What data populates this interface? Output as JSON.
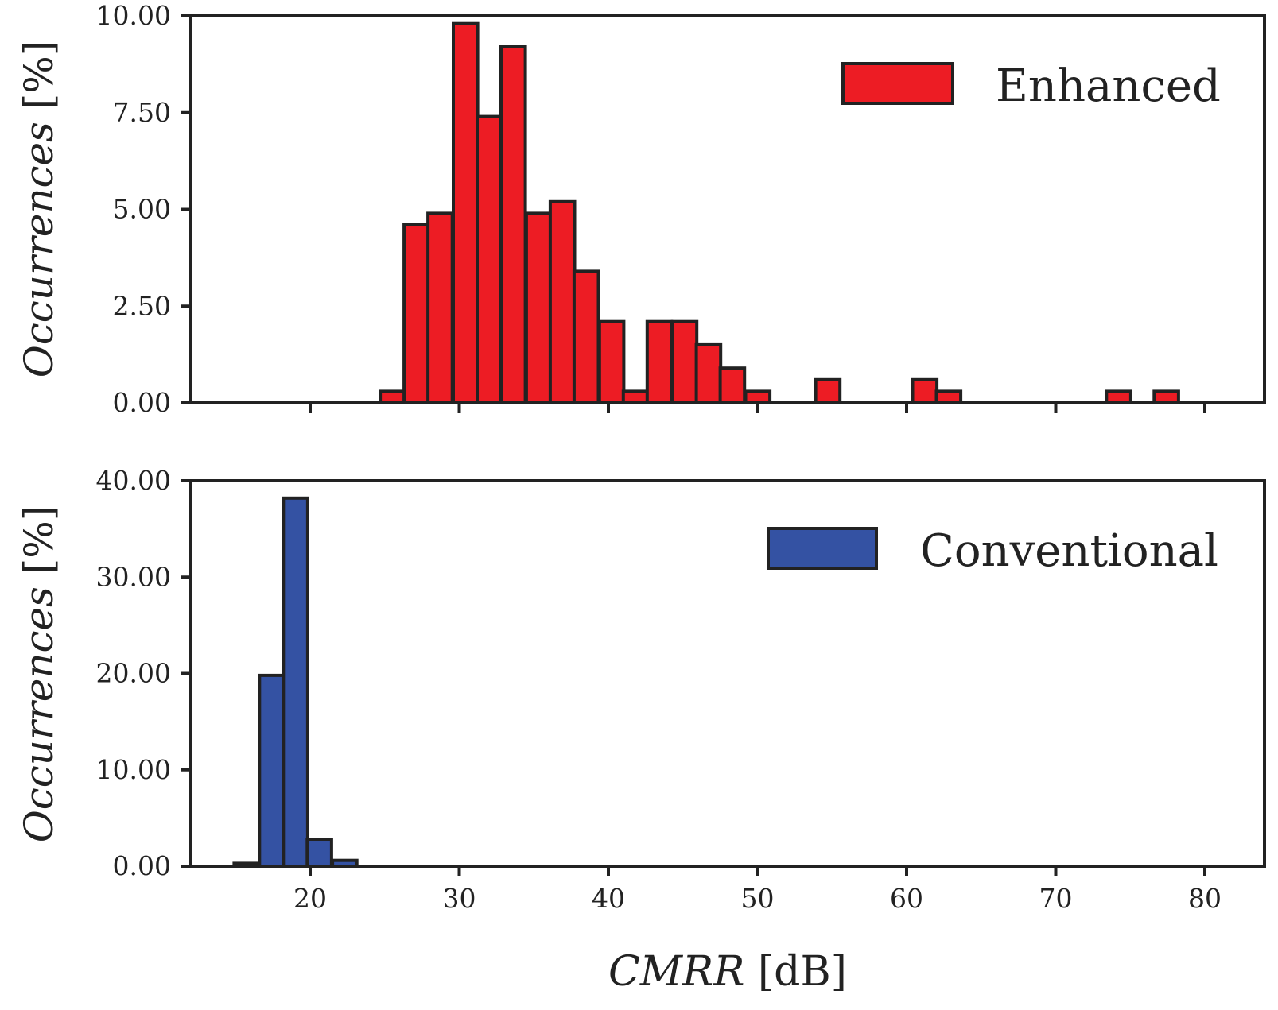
{
  "chart_data": [
    {
      "type": "bar",
      "variant": "histogram",
      "panel": "top",
      "title": "",
      "ylabel": "Occurrences",
      "ylabel_unit": "[%]",
      "xlim": [
        12,
        84
      ],
      "ylim": [
        0,
        10
      ],
      "yticks": [
        0,
        2.5,
        5,
        7.5,
        10
      ],
      "ytick_labels": [
        "0.00",
        "2.50",
        "5.00",
        "7.50",
        "10.00"
      ],
      "xticks": [
        20,
        30,
        40,
        50,
        60,
        70,
        80
      ],
      "show_xtick_labels": false,
      "bin_width": 1.63,
      "grid": false,
      "legend_position": "top-right",
      "color": "#ED1C24",
      "series": [
        {
          "name": "Enhanced",
          "bins_left": [
            24.7,
            26.3,
            27.9,
            29.6,
            31.2,
            32.8,
            34.5,
            36.1,
            37.7,
            39.4,
            41.0,
            42.6,
            44.3,
            45.9,
            47.5,
            49.2,
            53.9,
            60.4,
            62.0,
            73.4,
            76.6
          ],
          "values": [
            0.3,
            4.6,
            4.9,
            9.8,
            7.4,
            9.2,
            4.9,
            5.2,
            3.4,
            2.1,
            0.3,
            2.1,
            2.1,
            1.5,
            0.9,
            0.3,
            0.6,
            0.6,
            0.3,
            0.3,
            0.3
          ]
        }
      ]
    },
    {
      "type": "bar",
      "variant": "histogram",
      "panel": "bottom",
      "title": "",
      "xlabel": "CMRR",
      "xlabel_unit": "[dB]",
      "ylabel": "Occurrences",
      "ylabel_unit": "[%]",
      "xlim": [
        12,
        84
      ],
      "ylim": [
        0,
        40
      ],
      "yticks": [
        0,
        10,
        20,
        30,
        40
      ],
      "ytick_labels": [
        "0.00",
        "10.00",
        "20.00",
        "30.00",
        "40.00"
      ],
      "xticks": [
        20,
        30,
        40,
        50,
        60,
        70,
        80
      ],
      "xtick_labels": [
        "20",
        "30",
        "40",
        "50",
        "60",
        "70",
        "80"
      ],
      "bin_width": 1.63,
      "grid": false,
      "legend_position": "top-right",
      "color": "#3452A3",
      "series": [
        {
          "name": "Conventional",
          "bins_left": [
            14.9,
            16.6,
            18.2,
            19.8,
            21.5
          ],
          "values": [
            0.3,
            19.8,
            38.2,
            2.8,
            0.6
          ]
        }
      ]
    }
  ]
}
